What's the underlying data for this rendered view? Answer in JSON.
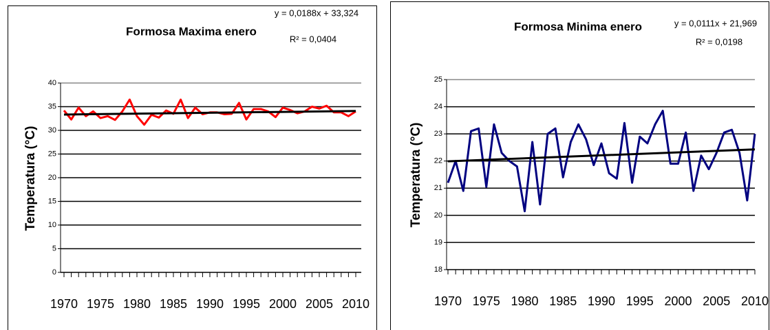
{
  "chart_data": [
    {
      "type": "line",
      "title": "Formosa Maxima enero",
      "equation": "y = 0,0188x + 33,324",
      "r_squared": "R² = 0,0404",
      "y_label": "Temperatura (°C)",
      "x": [
        1970,
        1971,
        1972,
        1973,
        1974,
        1975,
        1976,
        1977,
        1978,
        1979,
        1980,
        1981,
        1982,
        1983,
        1984,
        1985,
        1986,
        1987,
        1988,
        1989,
        1990,
        1991,
        1992,
        1993,
        1994,
        1995,
        1996,
        1997,
        1998,
        1999,
        2000,
        2001,
        2002,
        2003,
        2004,
        2005,
        2006,
        2007,
        2008,
        2009,
        2010
      ],
      "series": [
        {
          "color": "#ff0000",
          "values": [
            34.2,
            32.3,
            34.8,
            33.0,
            34.0,
            32.6,
            33.0,
            32.2,
            34.0,
            36.5,
            33.0,
            31.2,
            33.3,
            32.7,
            34.2,
            33.5,
            36.5,
            32.6,
            34.8,
            33.4,
            33.8,
            33.8,
            33.4,
            33.5,
            35.8,
            32.3,
            34.5,
            34.5,
            34.0,
            32.8,
            34.8,
            34.3,
            33.6,
            34.0,
            35.0,
            34.6,
            35.2,
            33.8,
            33.8,
            33.0,
            34.0
          ]
        }
      ],
      "trendline": {
        "color": "#000000",
        "x": [
          1970,
          2010
        ],
        "values": [
          33.34,
          34.09
        ]
      },
      "xlim": [
        1970,
        2010
      ],
      "xticks": [
        1970,
        1975,
        1980,
        1985,
        1990,
        1995,
        2000,
        2005,
        2010
      ],
      "ylim": [
        0,
        40
      ],
      "yticks": [
        0,
        5,
        10,
        15,
        20,
        25,
        30,
        35,
        40
      ],
      "grid": true
    },
    {
      "type": "line",
      "title": "Formosa Minima enero",
      "equation": "y = 0,0111x + 21,969",
      "r_squared": "R² = 0,0198",
      "y_label": "Temperatura (°C)",
      "x": [
        1970,
        1971,
        1972,
        1973,
        1974,
        1975,
        1976,
        1977,
        1978,
        1979,
        1980,
        1981,
        1982,
        1983,
        1984,
        1985,
        1986,
        1987,
        1988,
        1989,
        1990,
        1991,
        1992,
        1993,
        1994,
        1995,
        1996,
        1997,
        1998,
        1999,
        2000,
        2001,
        2002,
        2003,
        2004,
        2005,
        2006,
        2007,
        2008,
        2009,
        2010
      ],
      "series": [
        {
          "color": "#000080",
          "values": [
            21.2,
            22.0,
            20.9,
            23.1,
            23.2,
            21.05,
            23.35,
            22.3,
            22.0,
            21.8,
            20.15,
            22.7,
            20.4,
            23.0,
            23.2,
            21.4,
            22.7,
            23.35,
            22.8,
            21.85,
            22.65,
            21.55,
            21.35,
            23.4,
            21.2,
            22.9,
            22.65,
            23.35,
            23.85,
            21.9,
            21.9,
            23.05,
            20.9,
            22.2,
            21.7,
            22.3,
            23.05,
            23.15,
            22.3,
            20.55,
            23.0
          ]
        }
      ],
      "trendline": {
        "color": "#000000",
        "x": [
          1970,
          2010
        ],
        "values": [
          21.99,
          22.43
        ]
      },
      "xlim": [
        1970,
        2010
      ],
      "xticks": [
        1970,
        1975,
        1980,
        1985,
        1990,
        1995,
        2000,
        2005,
        2010
      ],
      "ylim": [
        18,
        25
      ],
      "yticks": [
        18,
        19,
        20,
        21,
        22,
        23,
        24,
        25
      ],
      "grid": true
    }
  ]
}
